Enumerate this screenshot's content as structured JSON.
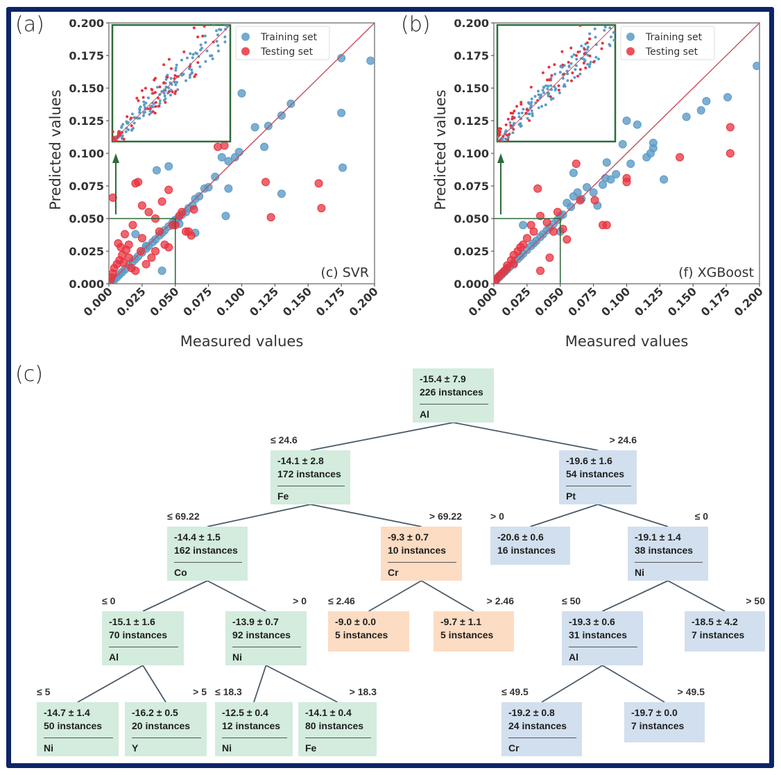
{
  "panels": {
    "a": "(a)",
    "b": "(b)",
    "c": "(c)"
  },
  "chart_data": [
    {
      "type": "scatter",
      "panel": "(a)",
      "annotation": "(c) SVR",
      "xlabel": "Measured values",
      "ylabel": "Predicted values",
      "xlim": [
        0,
        0.2
      ],
      "ylim": [
        0,
        0.2
      ],
      "xticks": [
        "0.000",
        "0.025",
        "0.050",
        "0.075",
        "0.100",
        "0.125",
        "0.150",
        "0.175",
        "0.200"
      ],
      "yticks": [
        "0.000",
        "0.025",
        "0.050",
        "0.075",
        "0.100",
        "0.125",
        "0.150",
        "0.175",
        "0.200"
      ],
      "legend": {
        "position": "top-right",
        "entries": [
          "Training set",
          "Testing set"
        ]
      },
      "colors": {
        "train": "#5b9bc7",
        "test": "#e8333f",
        "diagonal": "#c0505a",
        "inset": "#2e6b3a"
      },
      "inset": {
        "zoom_range": [
          0,
          0.05
        ],
        "arrow": "up"
      },
      "series": [
        {
          "name": "Training set",
          "x": [
            0.197,
            0.175,
            0.175,
            0.137,
            0.13,
            0.12,
            0.11,
            0.098,
            0.095,
            0.09,
            0.09,
            0.085,
            0.08,
            0.075,
            0.072,
            0.068,
            0.065,
            0.063,
            0.06,
            0.058,
            0.055,
            0.052,
            0.05,
            0.048,
            0.045,
            0.042,
            0.04,
            0.038,
            0.035,
            0.033,
            0.03,
            0.028,
            0.025,
            0.022,
            0.02,
            0.018,
            0.015,
            0.012,
            0.01,
            0.008,
            0.006,
            0.004,
            0.002,
            0.1,
            0.053,
            0.045,
            0.117,
            0.176,
            0.13,
            0.088,
            0.036,
            0.028,
            0.02,
            0.04,
            0.065
          ],
          "y": [
            0.171,
            0.173,
            0.131,
            0.138,
            0.129,
            0.121,
            0.12,
            0.101,
            0.097,
            0.094,
            0.073,
            0.097,
            0.082,
            0.074,
            0.073,
            0.067,
            0.065,
            0.06,
            0.058,
            0.055,
            0.053,
            0.05,
            0.049,
            0.047,
            0.044,
            0.041,
            0.039,
            0.037,
            0.034,
            0.032,
            0.029,
            0.027,
            0.024,
            0.021,
            0.019,
            0.017,
            0.014,
            0.011,
            0.009,
            0.007,
            0.005,
            0.003,
            0.001,
            0.146,
            0.046,
            0.09,
            0.105,
            0.089,
            0.069,
            0.052,
            0.087,
            0.029,
            0.038,
            0.01,
            0.039
          ]
        },
        {
          "name": "Testing set",
          "x": [
            0.158,
            0.16,
            0.122,
            0.118,
            0.087,
            0.082,
            0.064,
            0.053,
            0.045,
            0.04,
            0.035,
            0.03,
            0.025,
            0.022,
            0.02,
            0.018,
            0.015,
            0.013,
            0.01,
            0.008,
            0.006,
            0.004,
            0.003,
            0.002,
            0.001,
            0.024,
            0.025,
            0.038,
            0.048,
            0.058,
            0.062,
            0.012,
            0.015,
            0.02,
            0.032,
            0.035,
            0.045,
            0.05,
            0.055,
            0.003,
            0.007,
            0.009,
            0.011,
            0.017,
            0.028,
            0.042,
            0.06
          ],
          "y": [
            0.077,
            0.058,
            0.051,
            0.078,
            0.106,
            0.105,
            0.057,
            0.052,
            0.072,
            0.063,
            0.05,
            0.055,
            0.06,
            0.078,
            0.077,
            0.045,
            0.03,
            0.026,
            0.022,
            0.018,
            0.015,
            0.012,
            0.008,
            0.005,
            0.002,
            0.025,
            0.035,
            0.04,
            0.045,
            0.04,
            0.037,
            0.038,
            0.02,
            0.01,
            0.02,
            0.025,
            0.028,
            0.045,
            0.055,
            0.066,
            0.031,
            0.028,
            0.016,
            0.012,
            0.015,
            0.03,
            0.04
          ]
        }
      ]
    },
    {
      "type": "scatter",
      "panel": "(b)",
      "annotation": "(f) XGBoost",
      "xlabel": "Measured values",
      "ylabel": "Predicted values",
      "xlim": [
        0,
        0.2
      ],
      "ylim": [
        0,
        0.2
      ],
      "xticks": [
        "0.000",
        "0.025",
        "0.050",
        "0.075",
        "0.100",
        "0.125",
        "0.150",
        "0.175",
        "0.200"
      ],
      "yticks": [
        "0.000",
        "0.025",
        "0.050",
        "0.075",
        "0.100",
        "0.125",
        "0.150",
        "0.175",
        "0.200"
      ],
      "legend": {
        "position": "top-right",
        "entries": [
          "Training set",
          "Testing set"
        ]
      },
      "colors": {
        "train": "#5b9bc7",
        "test": "#e8333f",
        "diagonal": "#c0505a",
        "inset": "#2e6b3a"
      },
      "inset": {
        "zoom_range": [
          0,
          0.05
        ],
        "arrow": "up"
      },
      "series": [
        {
          "name": "Training set",
          "x": [
            0.198,
            0.176,
            0.16,
            0.156,
            0.145,
            0.128,
            0.12,
            0.118,
            0.115,
            0.12,
            0.108,
            0.1,
            0.097,
            0.092,
            0.088,
            0.084,
            0.082,
            0.078,
            0.075,
            0.07,
            0.066,
            0.063,
            0.06,
            0.058,
            0.055,
            0.052,
            0.05,
            0.048,
            0.045,
            0.042,
            0.04,
            0.037,
            0.035,
            0.032,
            0.03,
            0.028,
            0.025,
            0.022,
            0.02,
            0.018,
            0.015,
            0.012,
            0.01,
            0.008,
            0.006,
            0.004,
            0.002,
            0.103,
            0.085,
            0.06,
            0.05,
            0.022
          ],
          "y": [
            0.167,
            0.143,
            0.14,
            0.133,
            0.128,
            0.08,
            0.104,
            0.1,
            0.097,
            0.108,
            0.122,
            0.125,
            0.107,
            0.084,
            0.08,
            0.081,
            0.076,
            0.06,
            0.07,
            0.074,
            0.065,
            0.07,
            0.067,
            0.059,
            0.062,
            0.053,
            0.052,
            0.049,
            0.046,
            0.043,
            0.041,
            0.038,
            0.036,
            0.033,
            0.031,
            0.029,
            0.026,
            0.023,
            0.021,
            0.019,
            0.016,
            0.013,
            0.011,
            0.009,
            0.007,
            0.005,
            0.003,
            0.092,
            0.093,
            0.085,
            0.04,
            0.045
          ]
        },
        {
          "name": "Testing set",
          "x": [
            0.178,
            0.178,
            0.14,
            0.1,
            0.1,
            0.085,
            0.065,
            0.062,
            0.048,
            0.04,
            0.035,
            0.03,
            0.025,
            0.022,
            0.02,
            0.018,
            0.015,
            0.013,
            0.01,
            0.008,
            0.006,
            0.004,
            0.002,
            0.001,
            0.033,
            0.028,
            0.055,
            0.082,
            0.076,
            0.052,
            0.045,
            0.035,
            0.042,
            0.015,
            0.01
          ],
          "y": [
            0.12,
            0.1,
            0.097,
            0.081,
            0.078,
            0.045,
            0.064,
            0.092,
            0.055,
            0.047,
            0.052,
            0.04,
            0.035,
            0.03,
            0.028,
            0.025,
            0.022,
            0.018,
            0.014,
            0.01,
            0.008,
            0.006,
            0.004,
            0.002,
            0.073,
            0.045,
            0.034,
            0.045,
            0.064,
            0.042,
            0.04,
            0.01,
            0.02,
            0.015,
            0.012
          ]
        }
      ]
    }
  ],
  "tree": {
    "nodes": [
      {
        "id": "root",
        "value": "-15.4 ± 7.9",
        "count": "226 instances",
        "feature": "Al",
        "color": "green"
      },
      {
        "id": "n1",
        "cond": "≤ 24.6",
        "value": "-14.1 ± 2.8",
        "count": "172 instances",
        "feature": "Fe",
        "color": "green"
      },
      {
        "id": "n2",
        "cond": "> 24.6",
        "value": "-19.6 ± 1.6",
        "count": "54 instances",
        "feature": "Pt",
        "color": "blue"
      },
      {
        "id": "n3",
        "cond": "≤ 69.22",
        "value": "-14.4 ± 1.5",
        "count": "162 instances",
        "feature": "Co",
        "color": "green"
      },
      {
        "id": "n4",
        "cond": "> 69.22",
        "value": "-9.3 ± 0.7",
        "count": "10 instances",
        "feature": "Cr",
        "color": "orange"
      },
      {
        "id": "n5",
        "cond": "> 0",
        "value": "-20.6 ± 0.6",
        "count": "16 instances",
        "feature": "",
        "color": "blue"
      },
      {
        "id": "n6",
        "cond": "≤ 0",
        "value": "-19.1 ± 1.4",
        "count": "38 instances",
        "feature": "Ni",
        "color": "blue"
      },
      {
        "id": "n7",
        "cond": "≤ 0",
        "value": "-15.1 ± 1.6",
        "count": "70 instances",
        "feature": "Al",
        "color": "green"
      },
      {
        "id": "n8",
        "cond": "> 0",
        "value": "-13.9 ± 0.7",
        "count": "92 instances",
        "feature": "Ni",
        "color": "green"
      },
      {
        "id": "n9",
        "cond": "≤ 2.46",
        "value": "-9.0 ± 0.0",
        "count": "5 instances",
        "feature": "",
        "color": "orange"
      },
      {
        "id": "n10",
        "cond": "> 2.46",
        "value": "-9.7 ± 1.1",
        "count": "5 instances",
        "feature": "",
        "color": "orange"
      },
      {
        "id": "n11",
        "cond": "≤ 50",
        "value": "-19.3 ± 0.6",
        "count": "31 instances",
        "feature": "Al",
        "color": "blue"
      },
      {
        "id": "n12",
        "cond": "> 50",
        "value": "-18.5 ± 4.2",
        "count": "7 instances",
        "feature": "",
        "color": "blue"
      },
      {
        "id": "n13",
        "cond": "≤ 5",
        "value": "-14.7 ± 1.4",
        "count": "50 instances",
        "feature": "Ni",
        "color": "green"
      },
      {
        "id": "n14",
        "cond": "> 5",
        "value": "-16.2 ± 0.5",
        "count": "20 instances",
        "feature": "Y",
        "color": "green"
      },
      {
        "id": "n15",
        "cond": "≤ 18.3",
        "value": "-12.5 ± 0.4",
        "count": "12 instances",
        "feature": "Ni",
        "color": "green"
      },
      {
        "id": "n16",
        "cond": "> 18.3",
        "value": "-14.1 ± 0.4",
        "count": "80 instances",
        "feature": "Fe",
        "color": "green"
      },
      {
        "id": "n17",
        "cond": "≤ 49.5",
        "value": "-19.2 ± 0.8",
        "count": "24 instances",
        "feature": "Cr",
        "color": "blue"
      },
      {
        "id": "n18",
        "cond": "> 49.5",
        "value": "-19.7 ± 0.0",
        "count": "7 instances",
        "feature": "",
        "color": "blue"
      }
    ]
  }
}
